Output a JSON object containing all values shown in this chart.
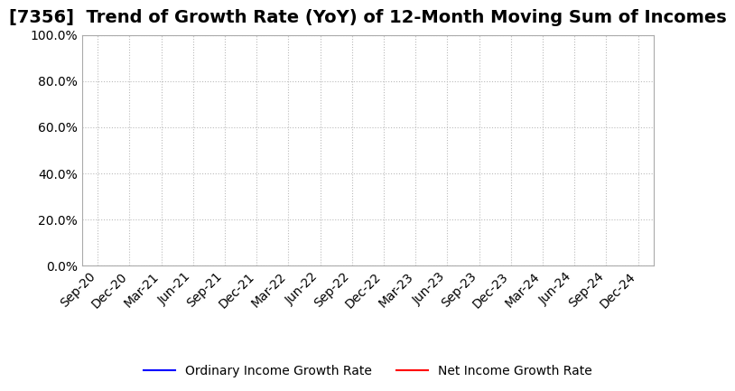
{
  "title": "[7356]  Trend of Growth Rate (YoY) of 12-Month Moving Sum of Incomes",
  "title_fontsize": 14,
  "ylim": [
    0.0,
    1.0
  ],
  "yticks": [
    0.0,
    0.2,
    0.4,
    0.6,
    0.8,
    1.0
  ],
  "ytick_labels": [
    "0.0%",
    "20.0%",
    "40.0%",
    "60.0%",
    "80.0%",
    "100.0%"
  ],
  "x_dates": [
    "Sep-20",
    "Dec-20",
    "Mar-21",
    "Jun-21",
    "Sep-21",
    "Dec-21",
    "Mar-22",
    "Jun-22",
    "Sep-22",
    "Dec-22",
    "Mar-23",
    "Jun-23",
    "Sep-23",
    "Dec-23",
    "Mar-24",
    "Jun-24",
    "Sep-24",
    "Dec-24"
  ],
  "ordinary_income_growth": [],
  "net_income_growth": [],
  "line_color_ordinary": "#0000FF",
  "line_color_net": "#FF0000",
  "legend_ordinary": "Ordinary Income Growth Rate",
  "legend_net": "Net Income Growth Rate",
  "background_color": "#FFFFFF",
  "grid_color": "#BBBBBB",
  "tick_fontsize": 10,
  "ytick_fontsize": 10
}
